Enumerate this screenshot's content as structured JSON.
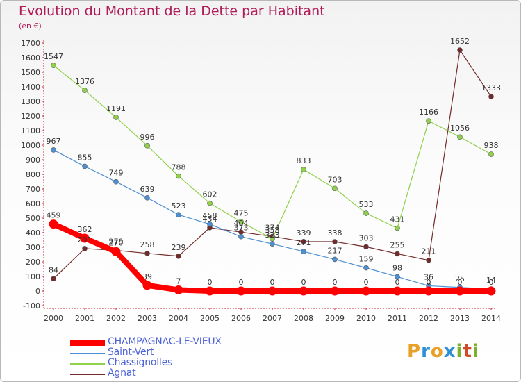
{
  "header": {
    "title": "Evolution du Montant de la Dette par Habitant",
    "subtitle": "(en €)"
  },
  "brand": {
    "logo_text": "Proxiti",
    "letters": [
      "P",
      "r",
      "o",
      "x",
      "i",
      "t",
      "i"
    ],
    "letter_colors": [
      "#e8a027",
      "#2e8fd6",
      "#e8a027",
      "#2e8fd6",
      "#7ab12e",
      "#d14a2a",
      "#7ab12e"
    ]
  },
  "chart_data": {
    "type": "line",
    "title": "Evolution du Montant de la Dette par Habitant",
    "subtitle": "(en €)",
    "xlabel": "",
    "ylabel": "",
    "categories": [
      "2000",
      "2001",
      "2002",
      "2003",
      "2004",
      "2005",
      "2006",
      "2007",
      "2008",
      "2009",
      "2010",
      "2011",
      "2012",
      "2013",
      "2014"
    ],
    "ylim": [
      -100,
      1700
    ],
    "yticks": [
      -100,
      0,
      100,
      200,
      300,
      400,
      500,
      600,
      700,
      800,
      900,
      1000,
      1100,
      1200,
      1300,
      1400,
      1500,
      1600,
      1700
    ],
    "grid": false,
    "legend_position": "bottom-left",
    "series": [
      {
        "name": "CHAMPAGNAC-LE-VIEUX",
        "color": "#ff0000",
        "values": [
          459,
          362,
          270,
          39,
          7,
          0,
          0,
          0,
          0,
          0,
          0,
          0,
          0,
          0,
          0
        ],
        "labels": [
          "459",
          "362",
          "270",
          "39",
          "7",
          "0",
          "0",
          "0",
          "0",
          "0",
          "0",
          "0",
          "0",
          "0",
          "0"
        ]
      },
      {
        "name": "Saint-Vert",
        "color": "#4d90d3",
        "values": [
          967,
          855,
          749,
          639,
          523,
          458,
          373,
          323,
          271,
          217,
          159,
          98,
          36,
          25,
          14
        ],
        "labels": [
          "967",
          "855",
          "749",
          "639",
          "523",
          "458",
          "373",
          "323",
          "271",
          "217",
          "159",
          "98",
          "36",
          "25",
          "14"
        ]
      },
      {
        "name": "Chassignolles",
        "color": "#8fd14a",
        "values": [
          1547,
          1376,
          1191,
          996,
          788,
          602,
          475,
          358,
          833,
          703,
          533,
          431,
          1166,
          1056,
          938
        ],
        "labels": [
          "1547",
          "1376",
          "1191",
          "996",
          "788",
          "602",
          "475",
          "358",
          "833",
          "703",
          "533",
          "431",
          "1166",
          "1056",
          "938"
        ]
      },
      {
        "name": "Agnat",
        "color": "#722a2a",
        "values": [
          84,
          291,
          279,
          258,
          239,
          434,
          404,
          374,
          339,
          338,
          303,
          255,
          211,
          1652,
          1333
        ],
        "labels": [
          "84",
          "291",
          "279",
          "258",
          "239",
          "434",
          "404",
          "374",
          "339",
          "338",
          "303",
          "255",
          "211",
          "1652",
          "1333"
        ]
      }
    ]
  }
}
